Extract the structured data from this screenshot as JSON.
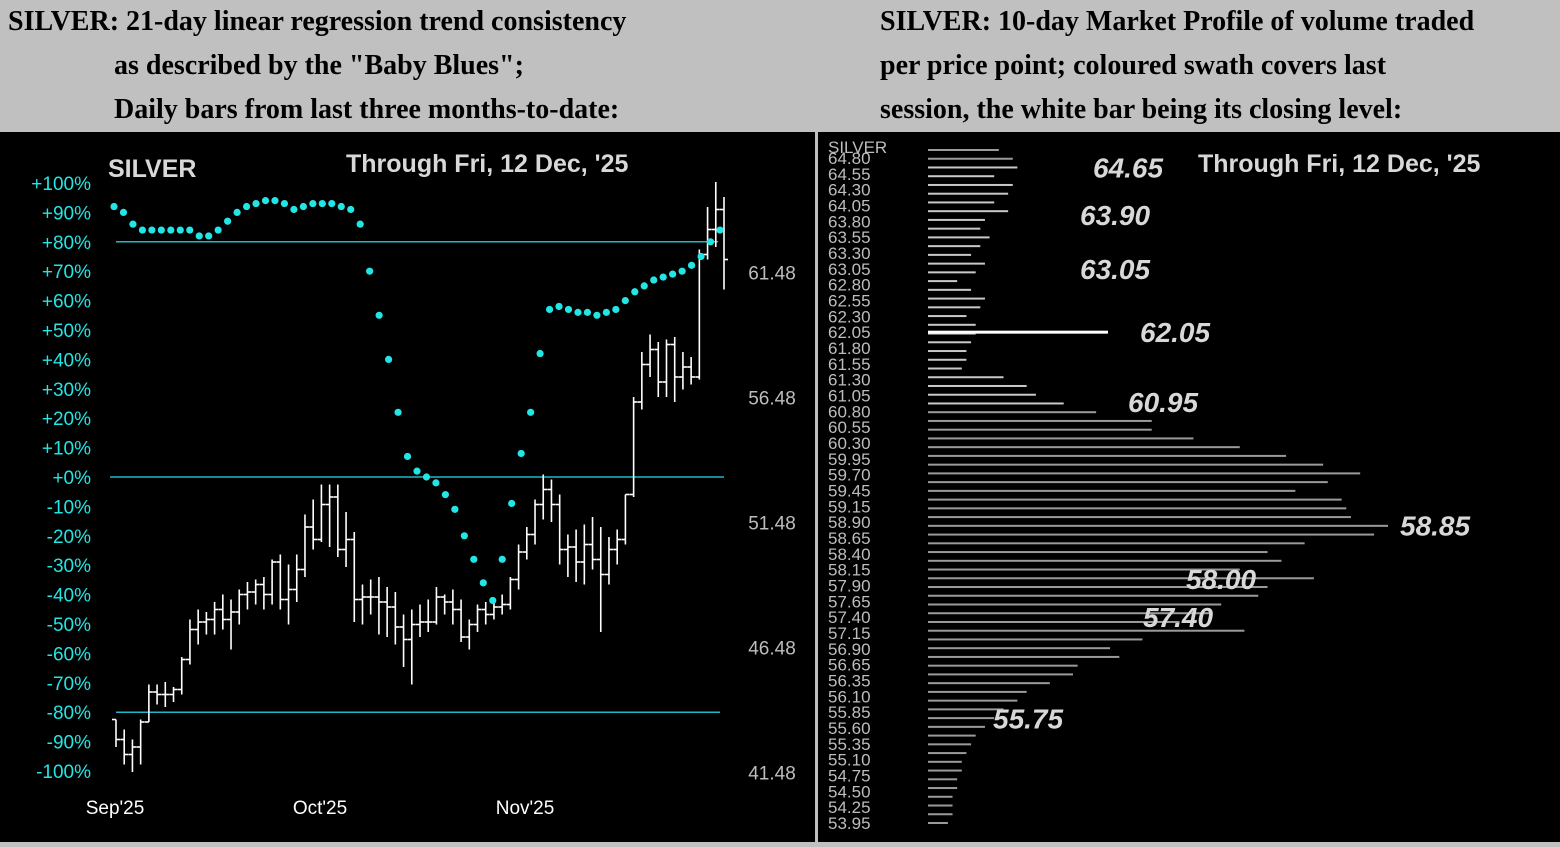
{
  "header_left": {
    "line1": "SILVER:  21-day linear regression trend consistency",
    "line2": "as described by the \"Baby Blues\";",
    "line3": "Daily bars from last three months-to-date:"
  },
  "header_right": {
    "line1": "SILVER:  10-day Market Profile of volume traded",
    "line2": "per price point; coloured swath covers last",
    "line3": "session, the white bar being its closing level:"
  },
  "colors": {
    "background": "#000000",
    "header_bg": "#c0c0c0",
    "baby_blues": "#22e5e5",
    "bars": "#ffffff",
    "profile": "#9a9a9a",
    "ref_lines": "#1fb8c8"
  },
  "chart_data": [
    {
      "type": "line",
      "title": "SILVER",
      "subtitle": "Through Fri, 12 Dec, '25",
      "x_tick_labels": [
        "Sep'25",
        "Oct'25",
        "Nov'25"
      ],
      "left_axis_labels": [
        "+100%",
        "+90%",
        "+80%",
        "+70%",
        "+60%",
        "+50%",
        "+40%",
        "+30%",
        "+20%",
        "+10%",
        "+0%",
        "-10%",
        "-20%",
        "-30%",
        "-40%",
        "-50%",
        "-60%",
        "-70%",
        "-80%",
        "-90%",
        "-100%"
      ],
      "right_axis_labels": [
        "61.48",
        "56.48",
        "51.48",
        "46.48",
        "41.48"
      ],
      "left_ylim": [
        -100,
        100
      ],
      "right_ylim": [
        41.48,
        65.48
      ],
      "reference_lines_pct": [
        80,
        0,
        -80
      ],
      "baby_blues_pct": [
        92,
        90,
        86,
        84,
        84,
        84,
        84,
        84,
        84,
        82,
        82,
        84,
        87,
        90,
        92,
        93,
        94,
        94,
        93,
        91,
        92,
        93,
        93,
        93,
        92,
        91,
        86,
        70,
        55,
        40,
        22,
        7,
        2,
        0,
        -2,
        -6,
        -11,
        -20,
        -28,
        -36,
        -42,
        -28,
        -9,
        8,
        22,
        42,
        57,
        58,
        57,
        56,
        56,
        55,
        56,
        57,
        60,
        63,
        65,
        67,
        68,
        69,
        70,
        72,
        75,
        80,
        84
      ],
      "price_bars": [
        {
          "o": 43.6,
          "h": 43.6,
          "l": 42.5,
          "c": 42.8
        },
        {
          "o": 42.8,
          "h": 43.2,
          "l": 41.8,
          "c": 42.2
        },
        {
          "o": 42.2,
          "h": 42.8,
          "l": 41.5,
          "c": 42.5
        },
        {
          "o": 42.5,
          "h": 43.6,
          "l": 41.8,
          "c": 43.5
        },
        {
          "o": 43.5,
          "h": 45.0,
          "l": 43.5,
          "c": 44.7
        },
        {
          "o": 44.7,
          "h": 45.0,
          "l": 44.2,
          "c": 44.6
        },
        {
          "o": 44.6,
          "h": 45.1,
          "l": 44.1,
          "c": 44.6
        },
        {
          "o": 44.6,
          "h": 44.9,
          "l": 44.3,
          "c": 44.8
        },
        {
          "o": 44.8,
          "h": 46.1,
          "l": 44.6,
          "c": 46.0
        },
        {
          "o": 46.0,
          "h": 47.6,
          "l": 45.8,
          "c": 47.2
        },
        {
          "o": 47.2,
          "h": 48.0,
          "l": 46.6,
          "c": 47.5
        },
        {
          "o": 47.5,
          "h": 47.9,
          "l": 47.0,
          "c": 47.6
        },
        {
          "o": 47.6,
          "h": 48.3,
          "l": 47.0,
          "c": 48.0
        },
        {
          "o": 48.0,
          "h": 48.6,
          "l": 47.2,
          "c": 47.6
        },
        {
          "o": 47.6,
          "h": 48.4,
          "l": 46.4,
          "c": 47.9
        },
        {
          "o": 47.9,
          "h": 48.8,
          "l": 47.4,
          "c": 48.6
        },
        {
          "o": 48.6,
          "h": 49.1,
          "l": 48.0,
          "c": 48.7
        },
        {
          "o": 48.7,
          "h": 49.2,
          "l": 48.2,
          "c": 49.0
        },
        {
          "o": 49.0,
          "h": 49.3,
          "l": 48.0,
          "c": 48.6
        },
        {
          "o": 48.6,
          "h": 50.0,
          "l": 48.2,
          "c": 49.9
        },
        {
          "o": 49.9,
          "h": 50.2,
          "l": 48.0,
          "c": 48.4
        },
        {
          "o": 48.4,
          "h": 49.8,
          "l": 47.4,
          "c": 48.8
        },
        {
          "o": 48.8,
          "h": 50.2,
          "l": 48.3,
          "c": 49.6
        },
        {
          "o": 49.6,
          "h": 51.8,
          "l": 49.3,
          "c": 51.3
        },
        {
          "o": 51.3,
          "h": 52.4,
          "l": 50.4,
          "c": 50.8
        },
        {
          "o": 50.8,
          "h": 53.0,
          "l": 50.7,
          "c": 52.2
        },
        {
          "o": 52.2,
          "h": 53.0,
          "l": 50.5,
          "c": 52.5
        },
        {
          "o": 52.5,
          "h": 53.0,
          "l": 50.1,
          "c": 50.4
        },
        {
          "o": 50.4,
          "h": 51.9,
          "l": 49.7,
          "c": 50.8
        },
        {
          "o": 50.8,
          "h": 51.1,
          "l": 47.5,
          "c": 48.4
        },
        {
          "o": 48.4,
          "h": 49.0,
          "l": 47.4,
          "c": 48.5
        },
        {
          "o": 48.5,
          "h": 49.2,
          "l": 47.8,
          "c": 48.5
        },
        {
          "o": 48.5,
          "h": 49.3,
          "l": 47.0,
          "c": 48.3
        },
        {
          "o": 48.3,
          "h": 48.9,
          "l": 46.9,
          "c": 48.1
        },
        {
          "o": 48.1,
          "h": 48.7,
          "l": 46.6,
          "c": 47.3
        },
        {
          "o": 47.3,
          "h": 47.8,
          "l": 45.7,
          "c": 46.8
        },
        {
          "o": 46.8,
          "h": 48.0,
          "l": 45.0,
          "c": 47.4
        },
        {
          "o": 47.4,
          "h": 48.2,
          "l": 46.9,
          "c": 47.5
        },
        {
          "o": 47.5,
          "h": 48.4,
          "l": 47.1,
          "c": 47.5
        },
        {
          "o": 47.5,
          "h": 48.9,
          "l": 47.4,
          "c": 48.5
        },
        {
          "o": 48.5,
          "h": 48.6,
          "l": 47.8,
          "c": 48.3
        },
        {
          "o": 48.3,
          "h": 48.8,
          "l": 47.4,
          "c": 48.0
        },
        {
          "o": 48.0,
          "h": 48.4,
          "l": 46.7,
          "c": 46.9
        },
        {
          "o": 46.9,
          "h": 47.6,
          "l": 46.4,
          "c": 47.4
        },
        {
          "o": 47.4,
          "h": 48.2,
          "l": 47.1,
          "c": 48.0
        },
        {
          "o": 48.0,
          "h": 48.3,
          "l": 47.4,
          "c": 47.8
        },
        {
          "o": 47.8,
          "h": 48.4,
          "l": 47.6,
          "c": 48.1
        },
        {
          "o": 48.1,
          "h": 48.6,
          "l": 47.8,
          "c": 48.2
        },
        {
          "o": 48.2,
          "h": 49.3,
          "l": 48.0,
          "c": 49.2
        },
        {
          "o": 49.2,
          "h": 50.6,
          "l": 48.8,
          "c": 50.3
        },
        {
          "o": 50.3,
          "h": 51.3,
          "l": 50.0,
          "c": 51.0
        },
        {
          "o": 51.0,
          "h": 52.4,
          "l": 50.6,
          "c": 52.2
        },
        {
          "o": 52.2,
          "h": 53.4,
          "l": 51.6,
          "c": 52.8
        },
        {
          "o": 52.8,
          "h": 53.2,
          "l": 51.5,
          "c": 52.2
        },
        {
          "o": 52.2,
          "h": 52.6,
          "l": 49.8,
          "c": 50.4
        },
        {
          "o": 50.4,
          "h": 51.0,
          "l": 49.3,
          "c": 50.5
        },
        {
          "o": 50.5,
          "h": 51.2,
          "l": 49.1,
          "c": 49.9
        },
        {
          "o": 49.9,
          "h": 51.4,
          "l": 49.0,
          "c": 50.6
        },
        {
          "o": 50.6,
          "h": 51.7,
          "l": 49.6,
          "c": 50.0
        },
        {
          "o": 50.0,
          "h": 51.3,
          "l": 47.1,
          "c": 49.4
        },
        {
          "o": 49.4,
          "h": 50.9,
          "l": 49.0,
          "c": 50.4
        },
        {
          "o": 50.4,
          "h": 51.2,
          "l": 49.8,
          "c": 50.8
        },
        {
          "o": 50.8,
          "h": 52.6,
          "l": 50.6,
          "c": 52.6
        },
        {
          "o": 52.6,
          "h": 56.5,
          "l": 52.5,
          "c": 56.3
        },
        {
          "o": 56.3,
          "h": 58.3,
          "l": 56.0,
          "c": 57.8
        },
        {
          "o": 57.8,
          "h": 59.0,
          "l": 57.3,
          "c": 58.4
        },
        {
          "o": 58.4,
          "h": 58.7,
          "l": 56.5,
          "c": 57.1
        },
        {
          "o": 57.1,
          "h": 58.8,
          "l": 56.5,
          "c": 58.6
        },
        {
          "o": 58.6,
          "h": 58.9,
          "l": 56.3,
          "c": 57.3
        },
        {
          "o": 57.3,
          "h": 58.3,
          "l": 56.8,
          "c": 57.7
        },
        {
          "o": 57.7,
          "h": 58.1,
          "l": 57.0,
          "c": 57.3
        },
        {
          "o": 57.3,
          "h": 62.4,
          "l": 57.2,
          "c": 62.2
        },
        {
          "o": 62.2,
          "h": 64.1,
          "l": 62.0,
          "c": 63.2
        },
        {
          "o": 63.2,
          "h": 65.1,
          "l": 62.5,
          "c": 64.0
        },
        {
          "o": 64.0,
          "h": 64.5,
          "l": 60.8,
          "c": 62.0
        }
      ]
    },
    {
      "type": "bar",
      "title": "SILVER",
      "subtitle": "Through Fri, 12 Dec, '25",
      "orientation": "horizontal",
      "price_labels": [
        "64.80",
        "64.55",
        "64.30",
        "64.05",
        "63.80",
        "63.55",
        "63.30",
        "63.05",
        "62.80",
        "62.55",
        "62.30",
        "62.05",
        "61.80",
        "61.55",
        "61.30",
        "61.05",
        "60.80",
        "60.55",
        "60.30",
        "59.95",
        "59.70",
        "59.45",
        "59.15",
        "58.90",
        "58.65",
        "58.40",
        "58.15",
        "57.90",
        "57.65",
        "57.40",
        "57.15",
        "56.90",
        "56.65",
        "56.35",
        "56.10",
        "55.85",
        "55.60",
        "55.35",
        "55.10",
        "54.75",
        "54.50",
        "54.25",
        "53.95"
      ],
      "volume_rel": [
        14,
        17,
        18,
        13,
        17,
        16,
        13,
        16,
        11,
        10,
        12,
        10,
        8,
        11,
        9,
        5,
        8,
        11,
        10,
        7,
        9,
        9,
        8,
        7,
        7,
        6,
        15,
        20,
        22,
        28,
        35,
        47,
        47,
        56,
        66,
        76,
        84,
        92,
        85,
        78,
        88,
        89,
        90,
        98,
        95,
        80,
        72,
        75,
        66,
        82,
        72,
        70,
        62,
        60,
        53,
        67,
        45,
        38,
        40,
        31,
        30,
        25,
        20,
        18,
        15,
        13,
        11,
        9,
        8,
        7,
        6,
        6,
        5,
        5,
        4,
        4,
        4,
        3
      ],
      "highlight_range": [
        60.95,
        64.65
      ],
      "white_bar_close": "62.05",
      "annotations": [
        "64.65",
        "63.90",
        "63.05",
        "62.05",
        "60.95",
        "58.85",
        "58.00",
        "57.40",
        "55.75"
      ]
    }
  ]
}
